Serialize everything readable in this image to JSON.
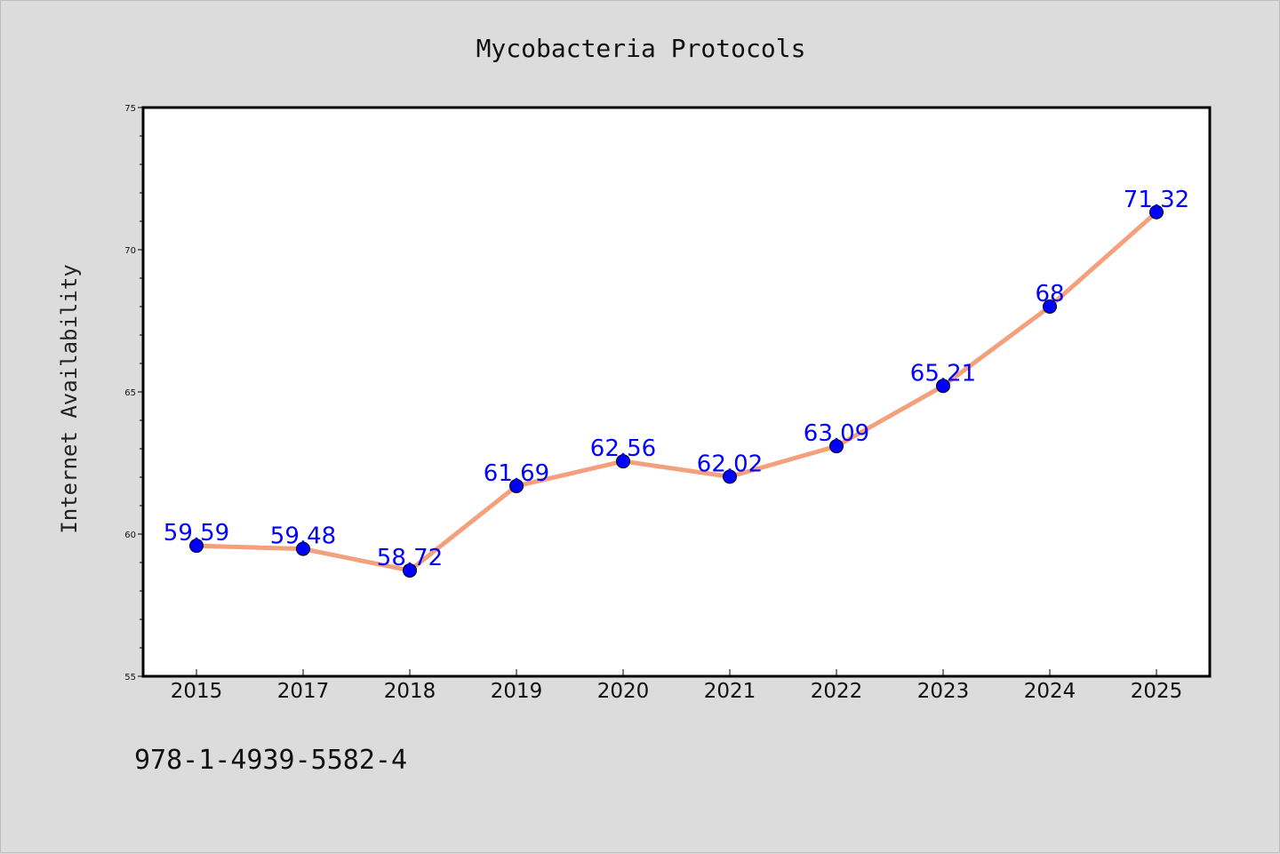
{
  "chart_data": {
    "type": "line",
    "title": "Mycobacteria Protocols",
    "xlabel": "",
    "ylabel": "Internet Availability",
    "categories": [
      "2015",
      "2017",
      "2018",
      "2019",
      "2020",
      "2021",
      "2022",
      "2023",
      "2024",
      "2025"
    ],
    "series": [
      {
        "values": [
          59.59,
          59.48,
          58.72,
          61.69,
          62.56,
          62.02,
          63.09,
          65.21,
          68,
          71.32
        ],
        "data_labels": [
          "59.59",
          "59.48",
          "58.72",
          "61.69",
          "62.56",
          "62.02",
          "63.09",
          "65.21",
          "68",
          "71.32"
        ],
        "line_color": "#f4a07c",
        "marker_color": "#0000ff"
      }
    ],
    "ylim": [
      55,
      75
    ],
    "yticks": [
      "55",
      "60",
      "65",
      "70",
      "75"
    ],
    "grid": false,
    "legend": "none"
  },
  "footer_text": "978-1-4939-5582-4",
  "colors": {
    "background": "#dcdcdc",
    "plot_background": "#ffffff",
    "axis": "#000000"
  }
}
